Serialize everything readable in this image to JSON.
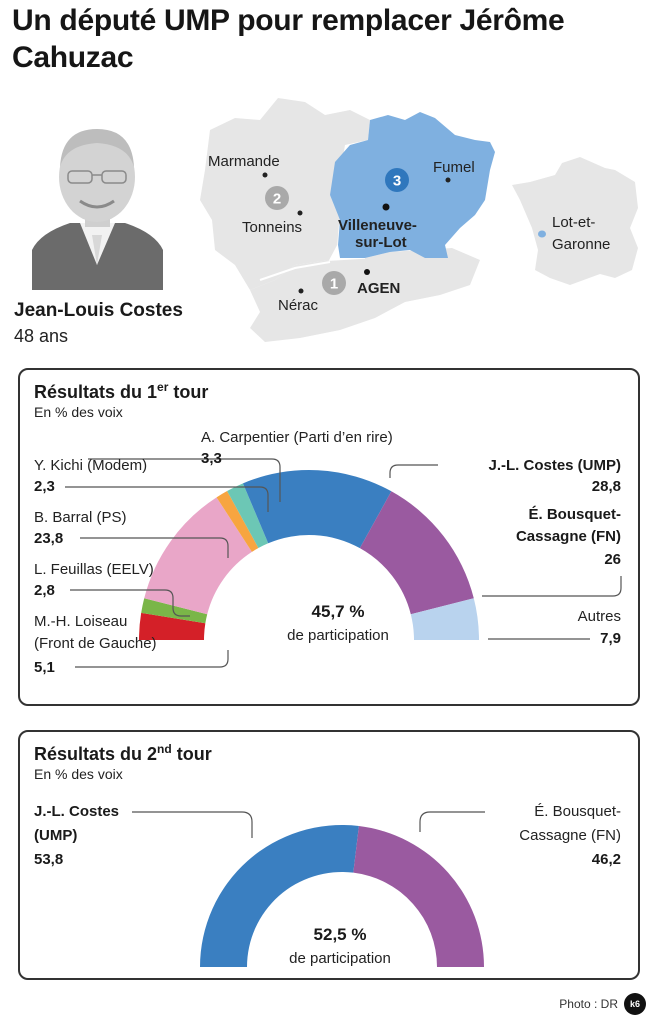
{
  "title": "Un député UMP pour remplacer Jérôme Cahuzac",
  "person": {
    "name": "Jean-Louis Costes",
    "age": "48 ans",
    "photo_icon": "portrait-photo"
  },
  "map": {
    "department_label": "Lot-et-Garonne",
    "cities": [
      "Marmande",
      "Tonneins",
      "Fumel",
      "Villeneuve-sur-Lot",
      "AGEN",
      "Nérac"
    ],
    "city_labels": {
      "marmande": "Marmande",
      "tonneins": "Tonneins",
      "fumel": "Fumel",
      "villeneuve_1": "Villeneuve-",
      "villeneuve_2": "sur-Lot",
      "agen": "AGEN",
      "nerac": "Nérac"
    },
    "circonscriptions": [
      "1",
      "2",
      "3"
    ],
    "highlighted_circonscription": "3",
    "colors": {
      "highlight": "#7fb0e0",
      "other": "#e6e6e6",
      "badge_active": "#2f77bd",
      "badge_inactive": "#a9a9a9"
    }
  },
  "chart_data": [
    {
      "type": "pie",
      "variant": "semi-donut",
      "title": "Résultats du 1er tour",
      "title_main": "Résultats du 1",
      "title_sup": "er",
      "title_end": " tour",
      "subtitle": "En % des voix",
      "center_value": "45,7 %",
      "center_label": "de participation",
      "unit": "%",
      "slices": [
        {
          "name": "M.-H. Loiseau (Front de Gauche)",
          "label_lines": [
            "M.-H. Loiseau",
            "(Front de Gauche)"
          ],
          "value": 5.1,
          "display": "5,1",
          "color": "#d42028"
        },
        {
          "name": "L. Feuillas (EELV)",
          "label_lines": [
            "L. Feuillas (EELV)"
          ],
          "value": 2.8,
          "display": "2,8",
          "color": "#7ab648"
        },
        {
          "name": "B. Barral (PS)",
          "label_lines": [
            "B. Barral (PS)"
          ],
          "value": 23.8,
          "display": "23,8",
          "color": "#e9a6c8"
        },
        {
          "name": "Y. Kichi (Modem)",
          "label_lines": [
            "Y. Kichi (Modem)"
          ],
          "value": 2.3,
          "display": "2,3",
          "color": "#f7a540"
        },
        {
          "name": "A. Carpentier (Parti d’en rire)",
          "label_lines": [
            "A. Carpentier (Parti d’en rire)"
          ],
          "value": 3.3,
          "display": "3,3",
          "color": "#6cc7b5"
        },
        {
          "name": "J.-L. Costes (UMP)",
          "label_lines": [
            "J.-L. Costes (UMP)"
          ],
          "value": 28.8,
          "display": "28,8",
          "color": "#3a7fc1"
        },
        {
          "name": "É. Bousquet-Cassagne (FN)",
          "label_lines": [
            "É. Bousquet-",
            "Cassagne (FN)"
          ],
          "value": 26,
          "display": "26",
          "color": "#9a5aa0"
        },
        {
          "name": "Autres",
          "label_lines": [
            "Autres"
          ],
          "value": 7.9,
          "display": "7,9",
          "color": "#b9d3ee"
        }
      ]
    },
    {
      "type": "pie",
      "variant": "semi-donut",
      "title": "Résultats du 2nd tour",
      "title_main": "Résultats du 2",
      "title_sup": "nd",
      "title_end": " tour",
      "subtitle": "En % des voix",
      "center_value": "52,5 %",
      "center_label": "de participation",
      "unit": "%",
      "slices": [
        {
          "name": "J.-L. Costes (UMP)",
          "label_lines": [
            "J.-L. Costes",
            "(UMP)"
          ],
          "value": 53.8,
          "display": "53,8",
          "color": "#3a7fc1"
        },
        {
          "name": "É. Bousquet-Cassagne (FN)",
          "label_lines": [
            "É. Bousquet-",
            "Cassagne (FN)"
          ],
          "value": 46.2,
          "display": "46,2",
          "color": "#9a5aa0"
        }
      ]
    }
  ],
  "footer": {
    "credit": "Photo : DR",
    "logo_text": "k6"
  }
}
